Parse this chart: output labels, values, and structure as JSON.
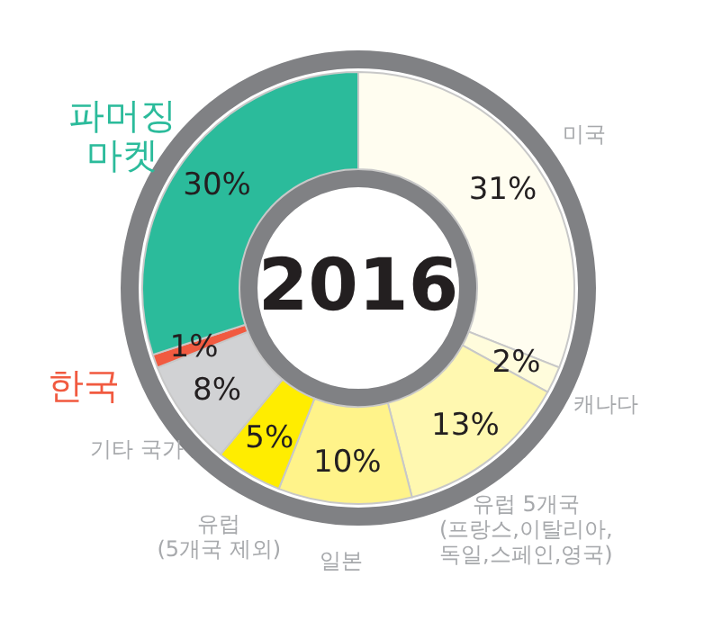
{
  "chart_data": {
    "type": "donut",
    "title": "2016",
    "categories": [
      "미국",
      "캐나다",
      "유럽 5개국\n(프랑스,이탈리아,\n독일,스페인,영국)",
      "일본",
      "유럽\n(5개국 제외)",
      "기타 국가",
      "한국",
      "파머징\n마켓"
    ],
    "values": [
      31,
      2,
      13,
      10,
      5,
      8,
      1,
      30
    ],
    "value_labels": [
      "31%",
      "2%",
      "13%",
      "10%",
      "5%",
      "8%",
      "1%",
      "30%"
    ],
    "colors": [
      "#fffdf0",
      "#fffcdc",
      "#fff8b0",
      "#fff38a",
      "#ffed00",
      "#d1d2d4",
      "#f15a40",
      "#2bbb9b"
    ]
  }
}
